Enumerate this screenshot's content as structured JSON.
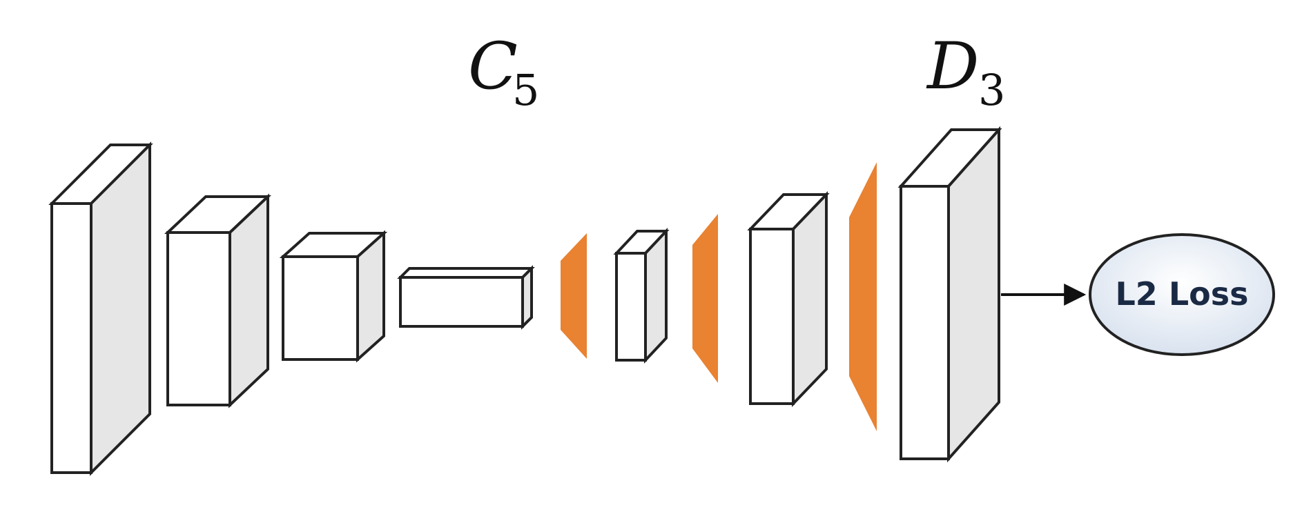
{
  "labels": {
    "c": {
      "base": "C",
      "sub": "5"
    },
    "d": {
      "base": "D",
      "sub": "3"
    }
  },
  "loss": {
    "text": "L2 Loss"
  },
  "colors": {
    "stroke": "#222222",
    "face": "#ffffff",
    "side": "#e6e6e6",
    "top": "#ffffff",
    "upsample": "#e98231",
    "loss_fill_light": "#ffffff",
    "loss_fill_dark": "#d6e0ee"
  },
  "layers": {
    "encoder": [
      "layer-1",
      "layer-2",
      "layer-3",
      "layer-4"
    ],
    "decoder": [
      "layer-5",
      "layer-6",
      "layer-7"
    ],
    "upsample": [
      "upsample-1",
      "upsample-2",
      "upsample-3"
    ]
  }
}
